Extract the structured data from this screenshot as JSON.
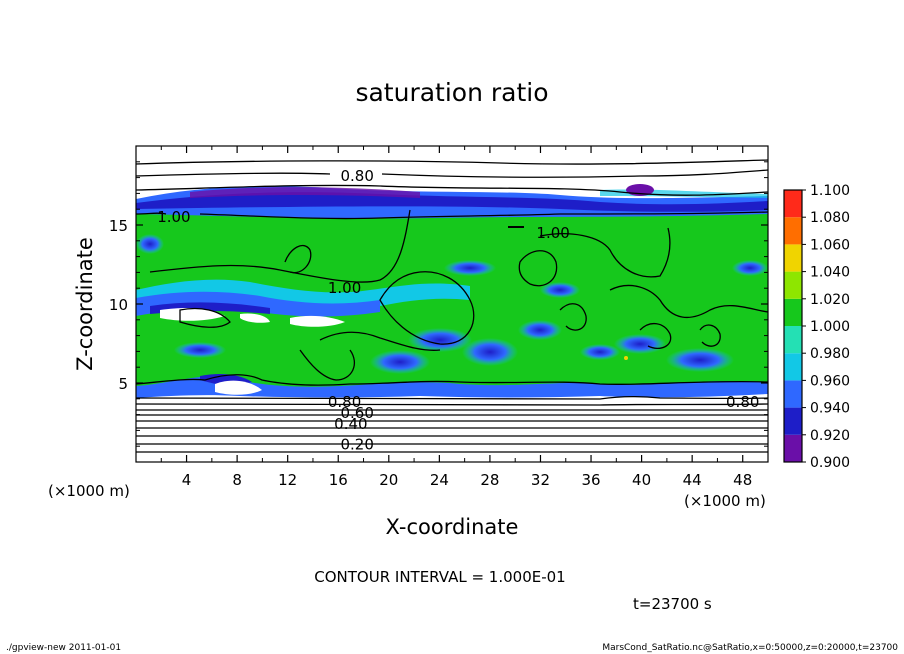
{
  "chart_data": {
    "type": "heatmap",
    "title": "saturation ratio",
    "xlabel": "X-coordinate",
    "ylabel": "Z-coordinate",
    "x_unit_label": "(×1000 m)",
    "z_unit_label": "(×1000 m)",
    "xlim": [
      0,
      50
    ],
    "ylim": [
      0,
      20
    ],
    "x_ticks": [
      "4",
      "8",
      "12",
      "16",
      "20",
      "24",
      "28",
      "32",
      "36",
      "40",
      "44",
      "48"
    ],
    "y_ticks": [
      "5",
      "10",
      "15"
    ],
    "colorbar": {
      "levels": [
        "0.900",
        "0.920",
        "0.940",
        "0.960",
        "0.980",
        "1.000",
        "1.020",
        "1.040",
        "1.060",
        "1.080",
        "1.100"
      ],
      "colors": [
        "#6a0fa8",
        "#1e1ec8",
        "#2f68ff",
        "#12c8e6",
        "#24e0b4",
        "#16c81c",
        "#8ee600",
        "#f0d400",
        "#ff6e00",
        "#ff2a1a",
        "#ff8a8a"
      ]
    },
    "contour_labels": [
      {
        "text": "0.80",
        "x": 17.5,
        "z": 18.1
      },
      {
        "text": "1.00",
        "x": 3.0,
        "z": 15.5
      },
      {
        "text": "1.00",
        "x": 16.5,
        "z": 11.0
      },
      {
        "text": "1.00",
        "x": 33.0,
        "z": 14.5
      },
      {
        "text": "0.80",
        "x": 16.5,
        "z": 3.8
      },
      {
        "text": "0.60",
        "x": 17.5,
        "z": 3.1
      },
      {
        "text": "0.40",
        "x": 17.0,
        "z": 2.4
      },
      {
        "text": "0.20",
        "x": 17.5,
        "z": 1.1
      },
      {
        "text": "0.80",
        "x": 48.0,
        "z": 3.8
      }
    ],
    "contour_interval_text": "CONTOUR INTERVAL = 1.000E-01",
    "time_text": "t=23700 s"
  },
  "footer": {
    "left": "./gpview-new   2011-01-01",
    "right": "MarsCond_SatRatio.nc@SatRatio,x=0:50000,z=0:20000,t=23700"
  },
  "colors": {
    "supersat": "#16c81c",
    "below": "#2f68ff",
    "deep_below": "#6a0fa8"
  }
}
